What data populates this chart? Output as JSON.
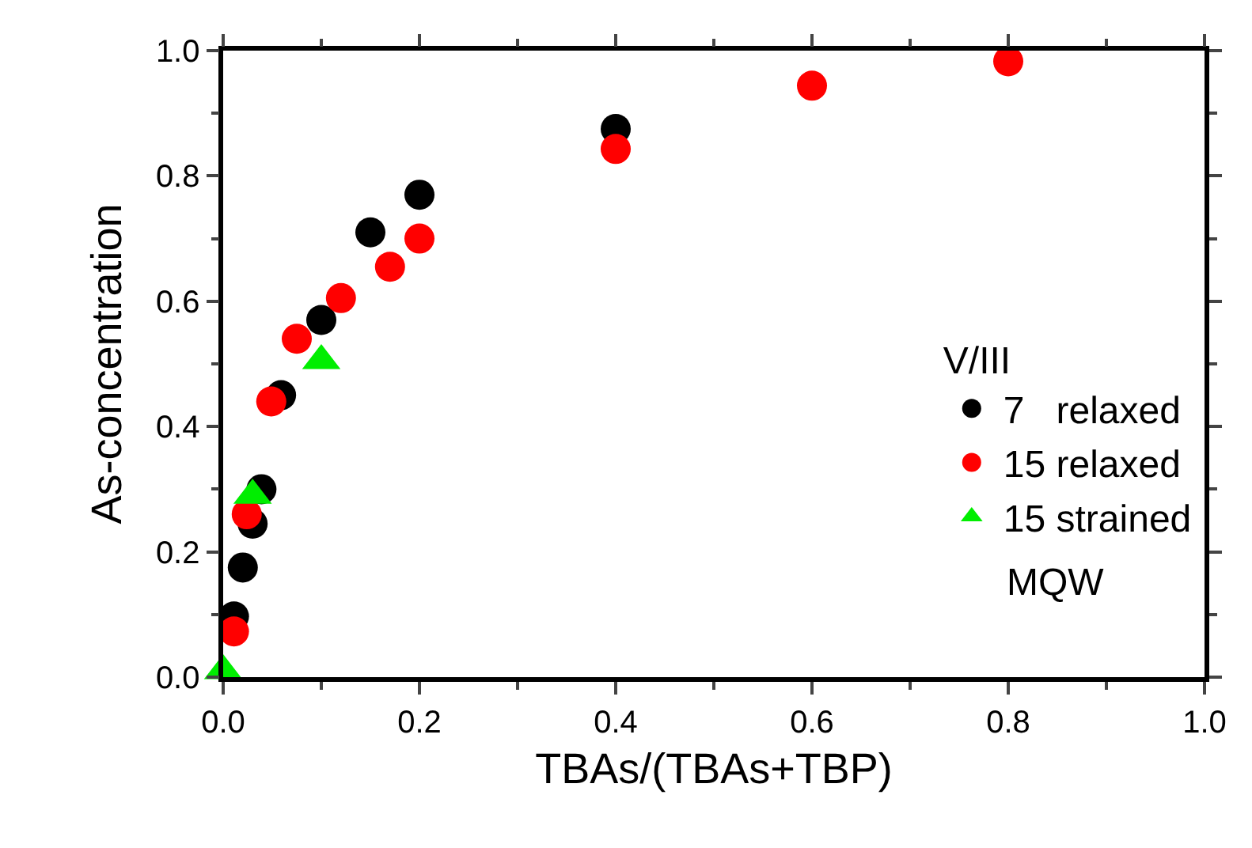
{
  "chart_data": {
    "type": "scatter",
    "xlabel": "TBAs/(TBAs+TBP)",
    "ylabel": "As-concentration",
    "legend_title": "V/III",
    "legend": "bottom right",
    "xlim": [
      0,
      1.0
    ],
    "ylim": [
      0,
      1.0
    ],
    "xticks": [
      {
        "value": 0,
        "label": "0.0"
      },
      {
        "value": 0.1,
        "label": null
      },
      0.2,
      {
        "value": 0.3,
        "label": null
      },
      0.4,
      {
        "value": 0.5,
        "label": null
      },
      0.6,
      {
        "value": 0.7,
        "label": null
      },
      0.8,
      {
        "value": 0.9,
        "label": null
      },
      {
        "value": 1,
        "label": "1.0"
      }
    ],
    "yticks": [
      {
        "value": 0,
        "label": "0.0"
      },
      {
        "value": 0.1,
        "label": null
      },
      0.2,
      {
        "value": 0.3,
        "label": null
      },
      0.4,
      {
        "value": 0.5,
        "label": null
      },
      0.6,
      {
        "value": 0.7,
        "label": null
      },
      0.8,
      {
        "value": 0.9,
        "label": null
      },
      {
        "value": 1,
        "label": "1.0"
      }
    ],
    "series": [
      {
        "name": "7   relaxed",
        "color": "#000000",
        "marker": "circle",
        "x": [
          0.011,
          0.02,
          0.03,
          0.039,
          0.059,
          0.1,
          0.15,
          0.2,
          0.4
        ],
        "values": [
          0.097,
          0.175,
          0.245,
          0.3,
          0.45,
          0.57,
          0.71,
          0.77,
          0.875
        ]
      },
      {
        "name": "15 relaxed",
        "color": "#ff0000",
        "marker": "circle",
        "x": [
          0.011,
          0.024,
          0.049,
          0.075,
          0.12,
          0.17,
          0.2,
          0.4,
          0.6,
          0.8
        ],
        "values": [
          0.073,
          0.26,
          0.44,
          0.54,
          0.605,
          0.655,
          0.7,
          0.843,
          0.944,
          0.983
        ]
      },
      {
        "name": "15 strained",
        "color": "#00ee00",
        "marker": "triangle",
        "x": [
          0.0,
          0.03,
          0.1
        ],
        "values": [
          0.01,
          0.29,
          0.505
        ]
      }
    ],
    "annotations": [
      "MQW"
    ]
  }
}
